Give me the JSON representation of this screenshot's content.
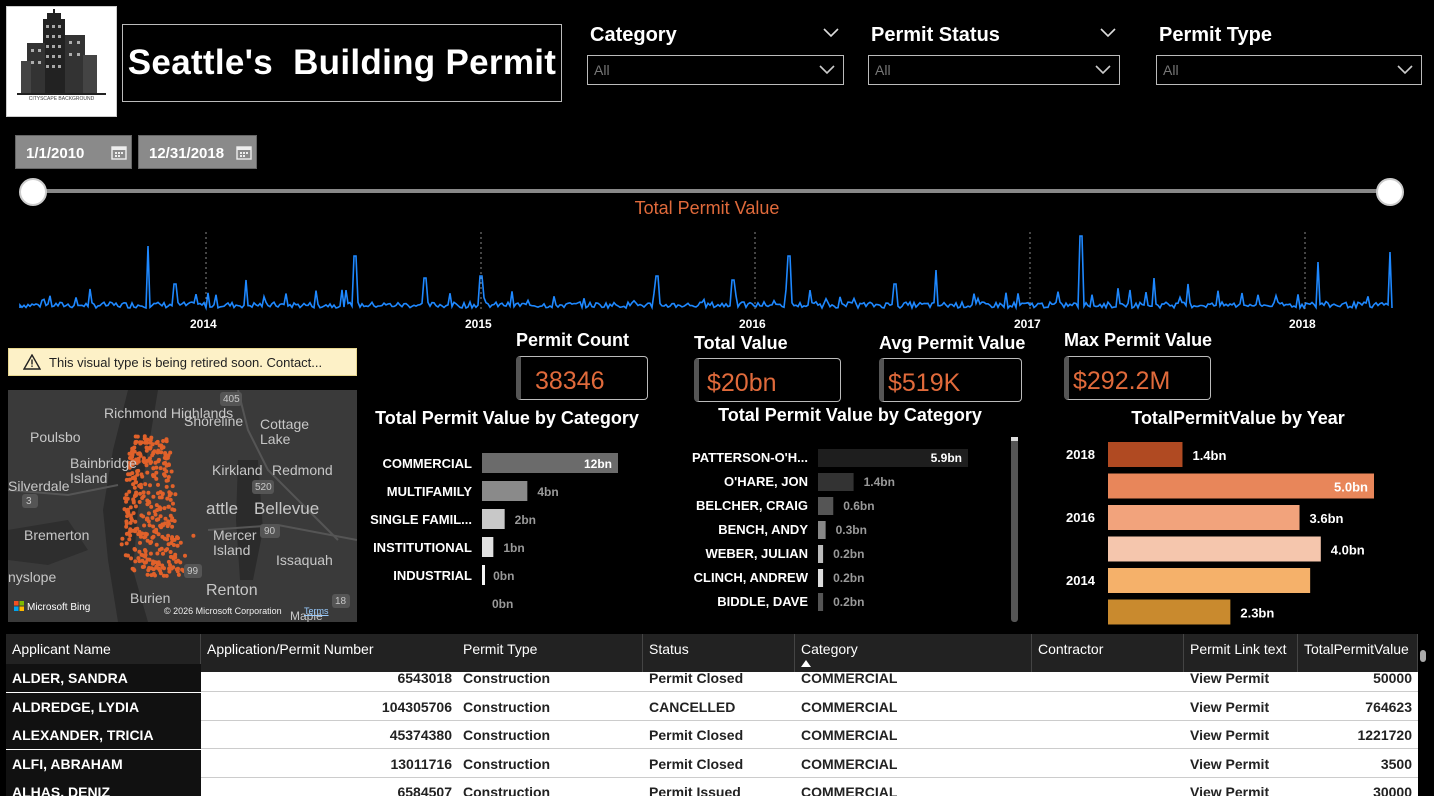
{
  "header": {
    "title": "Seattle's  Building Permit",
    "logo_caption": "CITYSCAPE BACKGROUND"
  },
  "slicers": [
    {
      "label": "Category",
      "value": "All"
    },
    {
      "label": "Permit Status",
      "value": "All"
    },
    {
      "label": "Permit Type",
      "value": "All"
    }
  ],
  "date_range": {
    "start": "1/1/2010",
    "end": "12/31/2018"
  },
  "line_chart": {
    "title": "Total Permit Value",
    "color": "#1e88ff",
    "years": [
      "2014",
      "2015",
      "2016",
      "2017",
      "2018"
    ]
  },
  "kpis": [
    {
      "title": "Permit Count",
      "value": "38346"
    },
    {
      "title": "Total Value",
      "value": "$20bn"
    },
    {
      "title": "Avg Permit Value",
      "value": "$519K"
    },
    {
      "title": "Max Permit Value",
      "value": "$292.2M"
    }
  ],
  "warning": {
    "text": "This visual type is being retired soon. Contact..."
  },
  "map": {
    "labels": [
      "Richmond Highlands",
      "Shoreline",
      "Cottage Lake",
      "Poulsbo",
      "Bainbridge Island",
      "Kirkland",
      "Redmond",
      "Silverdale",
      "attle",
      "Bellevue",
      "Bremerton",
      "Mercer Island",
      "Issaquah",
      "nyslope",
      "Renton",
      "Burien",
      "Maple"
    ],
    "road_shields": [
      "405",
      "3",
      "520",
      "90",
      "99",
      "18"
    ],
    "attribution": "Microsoft Bing",
    "copyright": "© 2026 Microsoft Corporation",
    "terms": "Terms"
  },
  "chart_category": {
    "title": "Total Permit Value by Category",
    "categories": [
      "COMMERCIAL",
      "MULTIFAMILY",
      "SINGLE FAMIL...",
      "INSTITUTIONAL",
      "INDUSTRIAL",
      ""
    ],
    "values": [
      12,
      4,
      2,
      1,
      0.1,
      0
    ],
    "labels": [
      "12bn",
      "4bn",
      "2bn",
      "1bn",
      "0bn",
      "0bn"
    ],
    "max": 12
  },
  "chart_contractor": {
    "title": "Total Permit Value by Category",
    "categories": [
      "PATTERSON-O'H...",
      "O'HARE, JON",
      "BELCHER, CRAIG",
      "BENCH, ANDY",
      "WEBER, JULIAN",
      "CLINCH, ANDREW",
      "BIDDLE, DAVE"
    ],
    "values": [
      5.9,
      1.4,
      0.6,
      0.3,
      0.2,
      0.2,
      0.2
    ],
    "labels": [
      "5.9bn",
      "1.4bn",
      "0.6bn",
      "0.3bn",
      "0.2bn",
      "0.2bn",
      "0.2bn"
    ],
    "max": 5.9
  },
  "chart_year": {
    "title": "TotalPermitValue by Year",
    "year_labels": [
      "2018",
      "",
      "2016",
      "",
      "2014",
      ""
    ],
    "values": [
      1.4,
      5.0,
      3.6,
      4.0,
      3.8,
      2.3
    ],
    "labels": [
      "1.4bn",
      "5.0bn",
      "3.6bn",
      "4.0bn",
      "",
      "2.3bn"
    ],
    "colors": [
      "#b04a22",
      "#e8865a",
      "#f2a37c",
      "#f5c6ad",
      "#f5b16a",
      "#c98a2e"
    ],
    "max": 5.0
  },
  "table": {
    "columns": [
      "Applicant Name",
      "Application/Permit Number",
      "Permit Type",
      "Status",
      "Category",
      "Contractor",
      "Permit Link text",
      "TotalPermitValue"
    ],
    "rows": [
      [
        "ALDER, SANDRA",
        "6543018",
        "Construction",
        "Permit Closed",
        "COMMERCIAL",
        "",
        "View Permit",
        "50000"
      ],
      [
        "ALDREDGE, LYDIA",
        "104305706",
        "Construction",
        "CANCELLED",
        "COMMERCIAL",
        "",
        "View Permit",
        "764623"
      ],
      [
        "ALEXANDER, TRICIA",
        "45374380",
        "Construction",
        "Permit Closed",
        "COMMERCIAL",
        "",
        "View Permit",
        "1221720"
      ],
      [
        "ALFI, ABRAHAM",
        "13011716",
        "Construction",
        "Permit Closed",
        "COMMERCIAL",
        "",
        "View Permit",
        "3500"
      ],
      [
        "ALHAS, DENIZ",
        "6584507",
        "Construction",
        "Permit Issued",
        "COMMERCIAL",
        "",
        "View Permit",
        "30000"
      ]
    ]
  }
}
